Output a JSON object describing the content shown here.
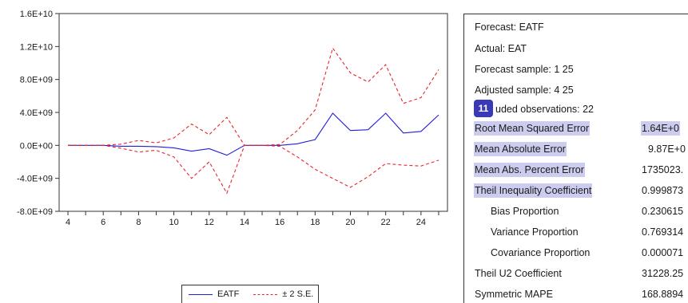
{
  "chart_data": {
    "type": "line",
    "x": [
      4,
      5,
      6,
      7,
      8,
      9,
      10,
      11,
      12,
      13,
      14,
      15,
      16,
      17,
      18,
      19,
      20,
      21,
      22,
      23,
      24,
      25
    ],
    "x_ticks": [
      "4",
      "6",
      "8",
      "10",
      "12",
      "14",
      "16",
      "18",
      "20",
      "22",
      "24"
    ],
    "y_ticks": [
      "1.6E+10",
      "1.2E+10",
      "8.0E+09",
      "4.0E+09",
      "0.0E+00",
      "-4.0E+09",
      "-8.0E+09"
    ],
    "ylim": [
      -8000000000.0,
      16000000000.0
    ],
    "series": [
      {
        "name": "EATF",
        "color": "#1f1fd6",
        "style": "solid",
        "values": [
          0,
          0,
          0,
          -100000000.0,
          -100000000.0,
          -150000000.0,
          -300000000.0,
          -700000000.0,
          -400000000.0,
          -1200000000.0,
          0,
          0,
          0,
          200000000.0,
          700000000.0,
          3900000000.0,
          1800000000.0,
          1900000000.0,
          3900000000.0,
          1500000000.0,
          1700000000.0,
          3700000000.0
        ]
      },
      {
        "name": "+2 S.E.",
        "color": "#e8262a",
        "style": "dashed",
        "values": [
          0,
          0,
          0,
          150000000.0,
          600000000.0,
          300000000.0,
          900000000.0,
          2600000000.0,
          1300000000.0,
          3400000000.0,
          0,
          0,
          100000000.0,
          1800000000.0,
          4300000000.0,
          11800000000.0,
          8800000000.0,
          7700000000.0,
          9800000000.0,
          5100000000.0,
          5800000000.0,
          9200000000.0
        ]
      },
      {
        "name": "-2 S.E.",
        "color": "#e8262a",
        "style": "dashed",
        "values": [
          0,
          0,
          0,
          -350000000.0,
          -800000000.0,
          -600000000.0,
          -1400000000.0,
          -4000000000.0,
          -2000000000.0,
          -5800000000.0,
          0,
          0,
          -100000000.0,
          -1400000000.0,
          -2900000000.0,
          -4000000000.0,
          -5100000000.0,
          -3800000000.0,
          -2200000000.0,
          -2400000000.0,
          -2500000000.0,
          -1800000000.0
        ]
      }
    ],
    "legend": {
      "placement": "bottom-center",
      "entries": [
        "EATF",
        "± 2 S.E."
      ]
    }
  },
  "legend_labels": {
    "eatf": "EATF",
    "se": "± 2 S.E."
  },
  "stats": {
    "forecast": "Forecast: EATF",
    "actual": "Actual: EAT",
    "forecast_sample": "Forecast sample: 1 25",
    "adjusted_sample": "Adjusted sample: 4 25",
    "included": "uded observations: 22",
    "rmse_label": "Root Mean Squared Error",
    "rmse_value": "1.64E+0",
    "mae_label": "Mean Absolute Error",
    "mae_value": "9.87E+0",
    "mape_label": "Mean Abs. Percent Error",
    "mape_value": "1735023.",
    "theil_label": "Theil Inequality Coefficient",
    "theil_value": "0.999873",
    "bias_label": "Bias Proportion",
    "bias_value": "0.230615",
    "variance_label": "Variance Proportion",
    "variance_value": "0.769314",
    "covariance_label": "Covariance Proportion",
    "covariance_value": "0.000071",
    "theil_u2_label": "Theil U2 Coefficient",
    "theil_u2_value": "31228.25",
    "smape_label": "Symmetric MAPE",
    "smape_value": "168.8894"
  },
  "badge": "11",
  "colors": {
    "highlight": "#ccccee",
    "badge": "#3a3ab8",
    "forecast_line": "#1f1fd6",
    "band_line": "#e8262a"
  }
}
